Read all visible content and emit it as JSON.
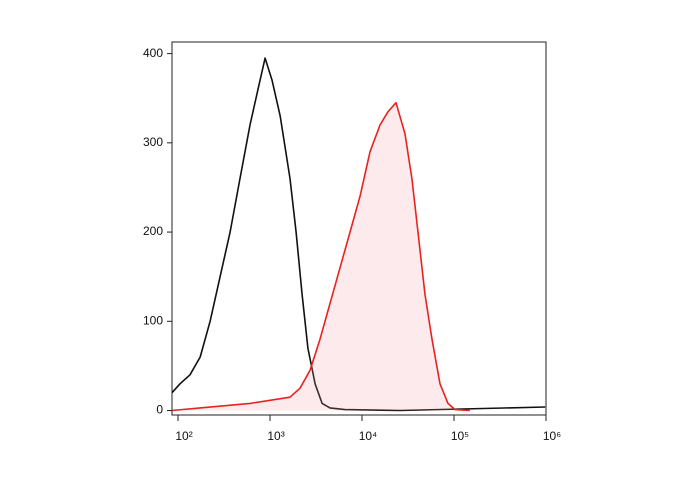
{
  "chart_data": {
    "type": "histogram-overlay",
    "xscale": "log",
    "xlim": [
      86,
      1000000
    ],
    "ylim": [
      -5,
      413
    ],
    "xticks": [
      {
        "value": 100,
        "label": "10²"
      },
      {
        "value": 1000,
        "label": "10³"
      },
      {
        "value": 10000,
        "label": "10⁴"
      },
      {
        "value": 100000,
        "label": "10⁵"
      },
      {
        "value": 1000000,
        "label": "10⁶"
      }
    ],
    "yticks": [
      0,
      100,
      200,
      300,
      400
    ],
    "series": [
      {
        "color": "#111111",
        "fill": "none",
        "x": [
          86,
          105,
          135,
          174,
          223,
          287,
          368,
          472,
          606,
          740,
          884,
          1054,
          1290,
          1650,
          1920,
          2230,
          2580,
          3090,
          3680,
          4490,
          6520,
          25700,
          980000
        ],
        "values": [
          20,
          30,
          40,
          60,
          100,
          150,
          200,
          260,
          320,
          360,
          395,
          370,
          330,
          260,
          200,
          130,
          70,
          30,
          8,
          3,
          1,
          0,
          4
        ]
      },
      {
        "color": "#e8231f",
        "fill": "rgba(240,150,160,0.2)",
        "x": [
          86,
          174,
          606,
          1650,
          2120,
          2720,
          3490,
          4490,
          5760,
          7410,
          9510,
          12200,
          15700,
          19200,
          23400,
          29300,
          34900,
          40600,
          48400,
          57700,
          70500,
          86100,
          102600,
          149000
        ],
        "values": [
          0,
          3,
          8,
          15,
          25,
          45,
          80,
          120,
          160,
          200,
          240,
          290,
          320,
          335,
          345,
          310,
          260,
          200,
          130,
          80,
          30,
          8,
          1,
          0
        ]
      }
    ]
  }
}
